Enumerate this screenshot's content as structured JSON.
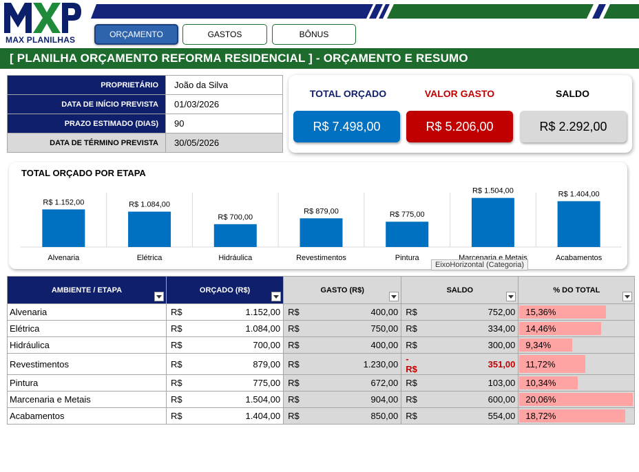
{
  "brand": {
    "logo_text": "MAX PLANILHAS"
  },
  "nav": {
    "tabs": [
      {
        "label": "ORÇAMENTO",
        "active": true
      },
      {
        "label": "GASTOS",
        "active": false
      },
      {
        "label": "BÔNUS",
        "active": false
      }
    ]
  },
  "title": "[ PLANILHA ORÇAMENTO REFORMA RESIDENCIAL ] - ORÇAMENTO E RESUMO",
  "info": [
    {
      "label": "PROPRIETÁRIO",
      "value": "João da Silva"
    },
    {
      "label": "DATA DE INÍCIO PREVISTA",
      "value": "01/03/2026"
    },
    {
      "label": "PRAZO ESTIMADO (DIAS)",
      "value": "90"
    },
    {
      "label": "DATA DE TÉRMINO PREVISTA",
      "value": "30/05/2026"
    }
  ],
  "summary": {
    "total_orcado": {
      "label": "TOTAL ORÇADO",
      "value": "R$ 7.498,00",
      "color": "#0070c0",
      "label_color": "#0f1f6b"
    },
    "valor_gasto": {
      "label": "VALOR GASTO",
      "value": "R$ 5.206,00",
      "color": "#c00000",
      "label_color": "#c00000"
    },
    "saldo": {
      "label": "SALDO",
      "value": "R$ 2.292,00",
      "color": "#d9d9d9",
      "label_color": "#000000"
    }
  },
  "chart_data": {
    "type": "bar",
    "title": "TOTAL ORÇADO POR ETAPA",
    "categories": [
      "Alvenaria",
      "Elétrica",
      "Hidráulica",
      "Revestimentos",
      "Pintura",
      "Marcenaria e Metais",
      "Acabamentos"
    ],
    "values": [
      1152,
      1084,
      700,
      879,
      775,
      1504,
      1404
    ],
    "data_labels": [
      "R$ 1.152,00",
      "R$ 1.084,00",
      "R$ 700,00",
      "R$ 879,00",
      "R$ 775,00",
      "R$ 1.504,00",
      "R$ 1.404,00"
    ],
    "bar_color": "#0070c0",
    "ylim": [
      0,
      1750
    ],
    "grid": false,
    "tooltip": "EixoHorizontal (Categoria)"
  },
  "table": {
    "headers": [
      "AMBIENTE / ETAPA",
      "ORÇADO (R$)",
      "GASTO (R$)",
      "SALDO",
      "% DO TOTAL"
    ],
    "currency": "R$",
    "rows": [
      {
        "etapa": "Alvenaria",
        "orcado": "1.152,00",
        "gasto": "400,00",
        "saldo": "752,00",
        "saldo_negative": false,
        "pct": "15,36%",
        "pct_value": 15.36
      },
      {
        "etapa": "Elétrica",
        "orcado": "1.084,00",
        "gasto": "750,00",
        "saldo": "334,00",
        "saldo_negative": false,
        "pct": "14,46%",
        "pct_value": 14.46
      },
      {
        "etapa": "Hidráulica",
        "orcado": "700,00",
        "gasto": "400,00",
        "saldo": "300,00",
        "saldo_negative": false,
        "pct": "9,34%",
        "pct_value": 9.34
      },
      {
        "etapa": "Revestimentos",
        "orcado": "879,00",
        "gasto": "1.230,00",
        "saldo": "351,00",
        "saldo_negative": true,
        "pct": "11,72%",
        "pct_value": 11.72
      },
      {
        "etapa": "Pintura",
        "orcado": "775,00",
        "gasto": "672,00",
        "saldo": "103,00",
        "saldo_negative": false,
        "pct": "10,34%",
        "pct_value": 10.34
      },
      {
        "etapa": "Marcenaria e Metais",
        "orcado": "1.504,00",
        "gasto": "904,00",
        "saldo": "600,00",
        "saldo_negative": false,
        "pct": "20,06%",
        "pct_value": 20.06
      },
      {
        "etapa": "Acabamentos",
        "orcado": "1.404,00",
        "gasto": "850,00",
        "saldo": "554,00",
        "saldo_negative": false,
        "pct": "18,72%",
        "pct_value": 18.72
      }
    ]
  },
  "colors": {
    "navy": "#0f1f6b",
    "green": "#1e6b2e",
    "pct_bar": "#ffa3a3"
  }
}
